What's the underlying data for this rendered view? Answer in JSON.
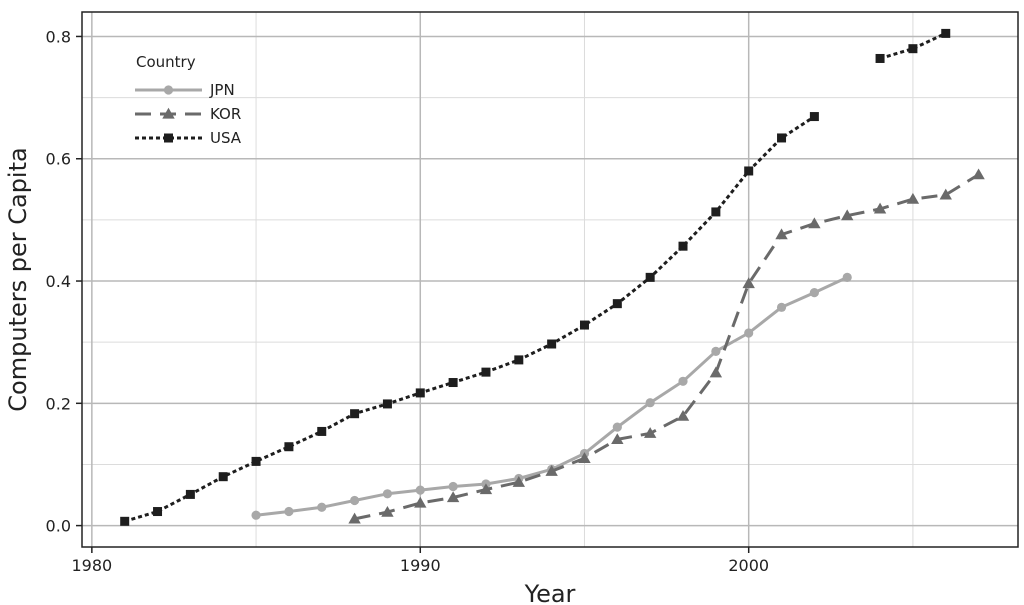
{
  "chart_data": {
    "type": "line",
    "xlabel": "Year",
    "ylabel": "Computers per Capita",
    "xlim": [
      1979.7,
      2008.2
    ],
    "ylim": [
      -0.035,
      0.84
    ],
    "x_ticks": [
      1980,
      1990,
      2000
    ],
    "x_tick_labels": [
      "1980",
      "1990",
      "2000"
    ],
    "y_ticks": [
      0.0,
      0.2,
      0.4,
      0.6,
      0.8
    ],
    "y_tick_labels": [
      "0.0",
      "0.2",
      "0.4",
      "0.6",
      "0.8"
    ],
    "grid": true,
    "legend": {
      "title": "Country",
      "position": "top-left"
    },
    "series": [
      {
        "name": "JPN",
        "color": "#a8a8a8",
        "line_style": "solid",
        "marker": "circle",
        "x": [
          1985,
          1986,
          1987,
          1988,
          1989,
          1990,
          1991,
          1992,
          1993,
          1994,
          1995,
          1996,
          1997,
          1998,
          1999,
          2000,
          2001,
          2002,
          2003
        ],
        "values": [
          0.017,
          0.023,
          0.03,
          0.041,
          0.052,
          0.058,
          0.064,
          0.068,
          0.077,
          0.092,
          0.118,
          0.161,
          0.201,
          0.236,
          0.285,
          0.315,
          0.357,
          0.381,
          0.406
        ]
      },
      {
        "name": "KOR",
        "color": "#6a6a6a",
        "line_style": "dashed",
        "marker": "triangle",
        "x": [
          1988,
          1989,
          1990,
          1991,
          1992,
          1993,
          1994,
          1995,
          1996,
          1997,
          1998,
          1999,
          2000,
          2001,
          2002,
          2003,
          2004,
          2005,
          2006,
          2007
        ],
        "values": [
          0.011,
          0.022,
          0.037,
          0.046,
          0.059,
          0.071,
          0.089,
          0.11,
          0.141,
          0.151,
          0.179,
          0.25,
          0.396,
          0.476,
          0.494,
          0.507,
          0.518,
          0.534,
          0.541,
          0.574
        ]
      },
      {
        "name": "USA",
        "color": "#1e1e1e",
        "line_style": "dotted",
        "marker": "square",
        "x": [
          1981,
          1982,
          1983,
          1984,
          1985,
          1986,
          1987,
          1988,
          1989,
          1990,
          1991,
          1992,
          1993,
          1994,
          1995,
          1996,
          1997,
          1998,
          1999,
          2000,
          2001,
          2002,
          null,
          2004,
          2005,
          2006
        ],
        "values": [
          0.007,
          0.023,
          0.051,
          0.08,
          0.105,
          0.129,
          0.154,
          0.183,
          0.199,
          0.217,
          0.234,
          0.251,
          0.271,
          0.297,
          0.328,
          0.363,
          0.406,
          0.457,
          0.513,
          0.58,
          0.634,
          0.669,
          null,
          0.764,
          0.78,
          0.805
        ]
      }
    ]
  }
}
